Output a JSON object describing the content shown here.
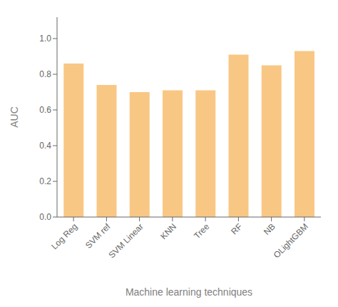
{
  "chart_data": {
    "type": "bar",
    "categories": [
      "Log Reg",
      "SVM ref",
      "SVM Linear",
      "KNN",
      "Tree",
      "RF",
      "NB",
      "OLightGBM"
    ],
    "values": [
      0.86,
      0.74,
      0.7,
      0.71,
      0.71,
      0.91,
      0.85,
      0.93
    ],
    "color": "#F9C784",
    "xlabel": "Machine learning techniques",
    "ylabel": "AUC",
    "ylim": [
      0.0,
      1.12
    ],
    "yticks": [
      {
        "value": 0.0,
        "label": "0.0"
      },
      0.2,
      0.4,
      0.6,
      0.8,
      {
        "value": 1.0,
        "label": "1.0"
      }
    ],
    "grid": false
  }
}
